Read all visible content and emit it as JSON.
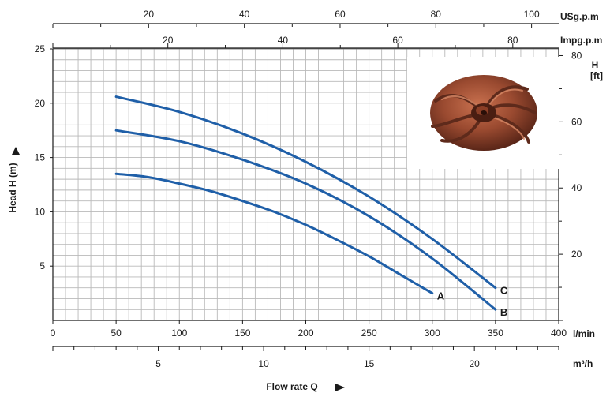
{
  "chart_data": {
    "type": "line",
    "title": "",
    "axes": {
      "x_bottom": {
        "label": "l/min",
        "range": [
          0,
          400
        ],
        "ticks": [
          "0",
          "50",
          "100",
          "150",
          "200",
          "250",
          "300",
          "350",
          "400"
        ]
      },
      "x_bottom_secondary": {
        "label": "m³/h",
        "range": [
          0,
          24
        ],
        "ticks": [
          "5",
          "10",
          "15",
          "20"
        ]
      },
      "x_top": {
        "label": "USg.p.m",
        "ticks": [
          "20",
          "40",
          "60",
          "80",
          "100"
        ]
      },
      "x_top_secondary": {
        "label": "Impg.p.m",
        "ticks": [
          "20",
          "40",
          "60",
          "80"
        ]
      },
      "y_left": {
        "label": "Head H (m)",
        "range": [
          0,
          25
        ],
        "ticks": [
          "5",
          "10",
          "15",
          "20",
          "25"
        ]
      },
      "y_right": {
        "label_line1": "H",
        "label_line2": "[ft]",
        "ticks": [
          "20",
          "40",
          "60",
          "80"
        ]
      },
      "x_caption": "Flow rate Q"
    },
    "grid": true,
    "series_color": "#1f5fa8",
    "series": [
      {
        "name": "A",
        "x": [
          50,
          75,
          100,
          125,
          150,
          175,
          200,
          225,
          250,
          275,
          300
        ],
        "y": [
          13.5,
          13.2,
          12.6,
          11.9,
          11.0,
          10.0,
          8.8,
          7.4,
          5.9,
          4.2,
          2.5
        ]
      },
      {
        "name": "B",
        "x": [
          50,
          100,
          150,
          200,
          250,
          300,
          350
        ],
        "y": [
          17.5,
          16.5,
          14.8,
          12.6,
          9.6,
          5.7,
          1.0
        ]
      },
      {
        "name": "C",
        "x": [
          50,
          100,
          150,
          200,
          250,
          300,
          350
        ],
        "y": [
          20.6,
          19.2,
          17.2,
          14.6,
          11.4,
          7.5,
          3.0
        ]
      }
    ]
  }
}
